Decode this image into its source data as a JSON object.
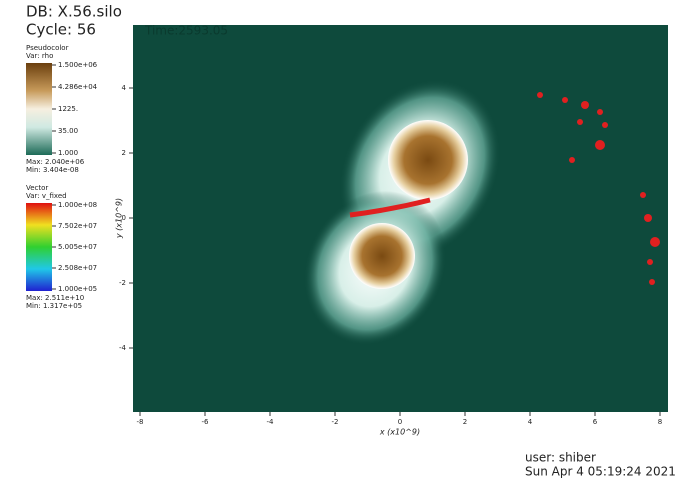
{
  "header": {
    "db": "DB: X.56.silo",
    "cycle": "Cycle: 56",
    "time": "Time:2593.05"
  },
  "pseudocolor_legend": {
    "title": "Pseudocolor",
    "var": "Var: rho",
    "labels": [
      "1.500e+06",
      "4.286e+04",
      "1225.",
      "35.00",
      "1.000"
    ],
    "max": "Max: 2.040e+06",
    "min": "Min: 3.404e-08"
  },
  "vector_legend": {
    "title": "Vector",
    "var": "Var: v_fixed",
    "labels": [
      "1.000e+08",
      "7.502e+07",
      "5.005e+07",
      "2.508e+07",
      "1.000e+05"
    ],
    "max": "Max: 2.511e+10",
    "min": "Min: 1.317e+05"
  },
  "axes": {
    "x_title": "x (x10^9)",
    "y_title": "y (x10^9)",
    "x_ticks": [
      "-8",
      "-6",
      "-4",
      "-2",
      "0",
      "2",
      "4",
      "6",
      "8"
    ],
    "y_ticks": [
      "4",
      "2",
      "0",
      "-2",
      "-4"
    ]
  },
  "footer": {
    "user": "user: shiber",
    "date": "Sun Apr  4 05:19:24 2021"
  }
}
